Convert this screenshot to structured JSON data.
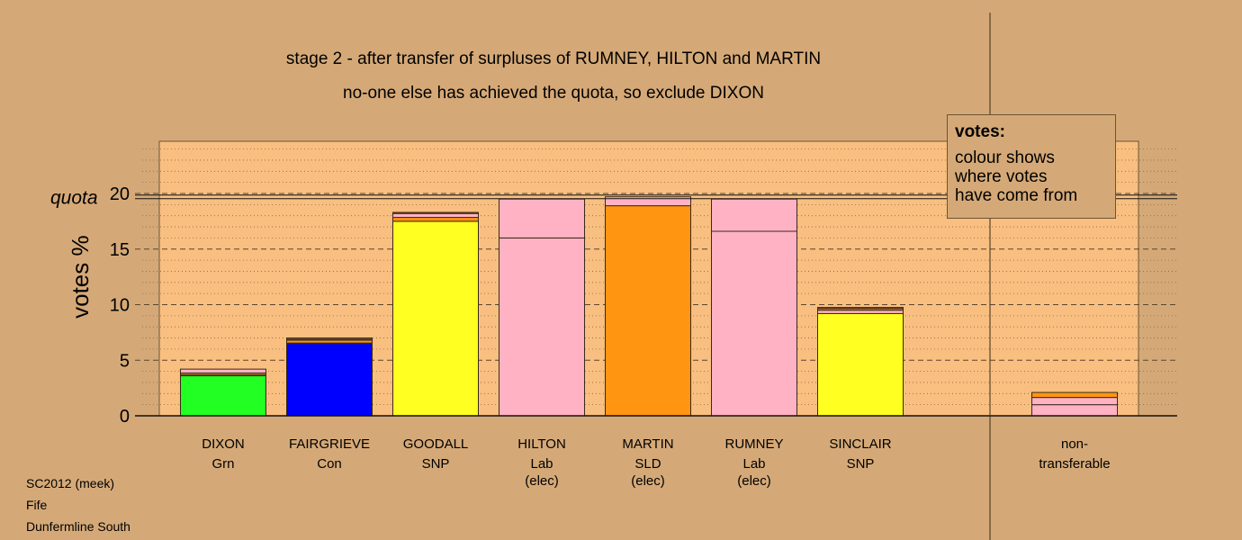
{
  "title": "stage 2 - after transfer of surpluses of RUMNEY, HILTON and MARTIN",
  "subtitle": "no-one else has achieved the quota, so exclude DIXON",
  "legend": {
    "heading": "votes:",
    "line1": "colour shows",
    "line2": "where votes",
    "line3": "have come from"
  },
  "footer": {
    "election": "SC2012 (meek)",
    "council": "Fife",
    "ward": "Dunfermline South"
  },
  "chart_data": {
    "type": "bar",
    "stacked": true,
    "ylabel": "votes %",
    "ylim": [
      0,
      25
    ],
    "yticks": [
      0,
      5,
      10,
      15,
      20
    ],
    "quota": 19.7,
    "quota_label": "quota",
    "grid": true,
    "colors": {
      "Grn": "#22ff22",
      "Con": "#0000ff",
      "SNP": "#ffff22",
      "Lab": "#ffb2c4",
      "SLD": "#ff9510",
      "Ind": "#e08040",
      "other": "#b06030"
    },
    "candidates": [
      {
        "name": "DIXON",
        "party": "Grn",
        "status": "",
        "segments": [
          {
            "from": "Grn",
            "value": 3.6
          },
          {
            "from": "SNP",
            "value": 0.1
          },
          {
            "from": "SLD",
            "value": 0.15
          },
          {
            "from": "Lab",
            "value": 0.35
          }
        ]
      },
      {
        "name": "FAIRGRIEVE",
        "party": "Con",
        "status": "",
        "segments": [
          {
            "from": "Con",
            "value": 6.5
          },
          {
            "from": "SNP",
            "value": 0.05
          },
          {
            "from": "SLD",
            "value": 0.25
          },
          {
            "from": "other",
            "value": 0.1
          },
          {
            "from": "Lab",
            "value": 0.1
          }
        ]
      },
      {
        "name": "GOODALL",
        "party": "SNP",
        "status": "",
        "segments": [
          {
            "from": "SNP",
            "value": 17.5
          },
          {
            "from": "SLD",
            "value": 0.35
          },
          {
            "from": "Lab",
            "value": 0.35
          },
          {
            "from": "other",
            "value": 0.1
          }
        ]
      },
      {
        "name": "HILTON",
        "party": "Lab",
        "status": "(elec)",
        "segments": [
          {
            "from": "Lab",
            "value": 16.0
          },
          {
            "from": "Lab",
            "value": 3.5
          }
        ]
      },
      {
        "name": "MARTIN",
        "party": "SLD",
        "status": "(elec)",
        "segments": [
          {
            "from": "SLD",
            "value": 18.9
          },
          {
            "from": "Lab",
            "value": 0.8
          }
        ]
      },
      {
        "name": "RUMNEY",
        "party": "Lab",
        "status": "(elec)",
        "segments": [
          {
            "from": "Lab",
            "value": 16.6
          },
          {
            "from": "Lab",
            "value": 2.9
          }
        ]
      },
      {
        "name": "SINCLAIR",
        "party": "SNP",
        "status": "",
        "segments": [
          {
            "from": "SNP",
            "value": 9.2
          },
          {
            "from": "Lab",
            "value": 0.3
          },
          {
            "from": "SLD",
            "value": 0.15
          },
          {
            "from": "other",
            "value": 0.1
          }
        ]
      }
    ],
    "nontransferable": {
      "label1": "non-",
      "label2": "transferable",
      "segments": [
        {
          "from": "Lab",
          "value": 1.0
        },
        {
          "from": "Lab",
          "value": 0.65
        },
        {
          "from": "SLD",
          "value": 0.45
        }
      ]
    }
  }
}
